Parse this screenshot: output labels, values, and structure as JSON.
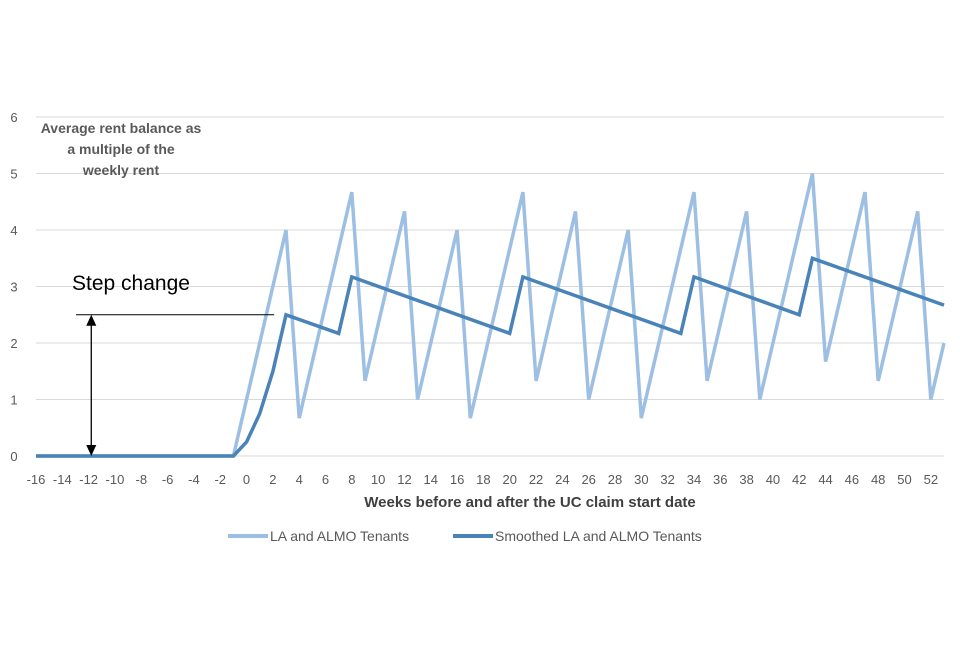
{
  "chart_data": {
    "type": "line",
    "title": "",
    "ylabel_lines": [
      "Average rent balance as",
      "a multiple of the",
      "weekly rent"
    ],
    "xlabel": "Weeks before and after the UC claim start date",
    "ylim": [
      0,
      6
    ],
    "yticks": [
      0,
      1,
      2,
      3,
      4,
      5,
      6
    ],
    "xlim": [
      -16,
      53
    ],
    "xticks": [
      -16,
      -14,
      -12,
      -10,
      -8,
      -6,
      -4,
      -2,
      0,
      2,
      4,
      6,
      8,
      10,
      12,
      14,
      16,
      18,
      20,
      22,
      24,
      26,
      28,
      30,
      32,
      34,
      36,
      38,
      40,
      42,
      44,
      46,
      48,
      50,
      52
    ],
    "grid": true,
    "legend_position": "bottom",
    "series": [
      {
        "name": "LA and ALMO Tenants",
        "color": "#9dbfe3",
        "points": [
          [
            -16,
            0
          ],
          [
            -1,
            0
          ],
          [
            3,
            4.0
          ],
          [
            4,
            0.67
          ],
          [
            8,
            4.67
          ],
          [
            9,
            1.33
          ],
          [
            12,
            4.33
          ],
          [
            13,
            1.0
          ],
          [
            16,
            4.0
          ],
          [
            17,
            0.67
          ],
          [
            21,
            4.67
          ],
          [
            22,
            1.33
          ],
          [
            25,
            4.33
          ],
          [
            26,
            1.0
          ],
          [
            29,
            4.0
          ],
          [
            30,
            0.67
          ],
          [
            34,
            4.67
          ],
          [
            35,
            1.33
          ],
          [
            38,
            4.33
          ],
          [
            39,
            1.0
          ],
          [
            43,
            5.0
          ],
          [
            44,
            1.67
          ],
          [
            47,
            4.67
          ],
          [
            48,
            1.33
          ],
          [
            51,
            4.33
          ],
          [
            52,
            1.0
          ],
          [
            53,
            2.0
          ]
        ]
      },
      {
        "name": "Smoothed LA and ALMO Tenants",
        "color": "#4a83b8",
        "points": [
          [
            -16,
            0
          ],
          [
            -1,
            0
          ],
          [
            0,
            0.25
          ],
          [
            1,
            0.75
          ],
          [
            2,
            1.5
          ],
          [
            3,
            2.5
          ],
          [
            7,
            2.17
          ],
          [
            8,
            3.17
          ],
          [
            20,
            2.17
          ],
          [
            21,
            3.17
          ],
          [
            33,
            2.17
          ],
          [
            34,
            3.17
          ],
          [
            42,
            2.5
          ],
          [
            43,
            3.5
          ],
          [
            53,
            2.67
          ]
        ]
      }
    ],
    "annotation": {
      "text": "Step change",
      "from_x": -11.8,
      "from_y": 0,
      "to_y": 2.5,
      "guide_x_end": 2.1
    }
  }
}
